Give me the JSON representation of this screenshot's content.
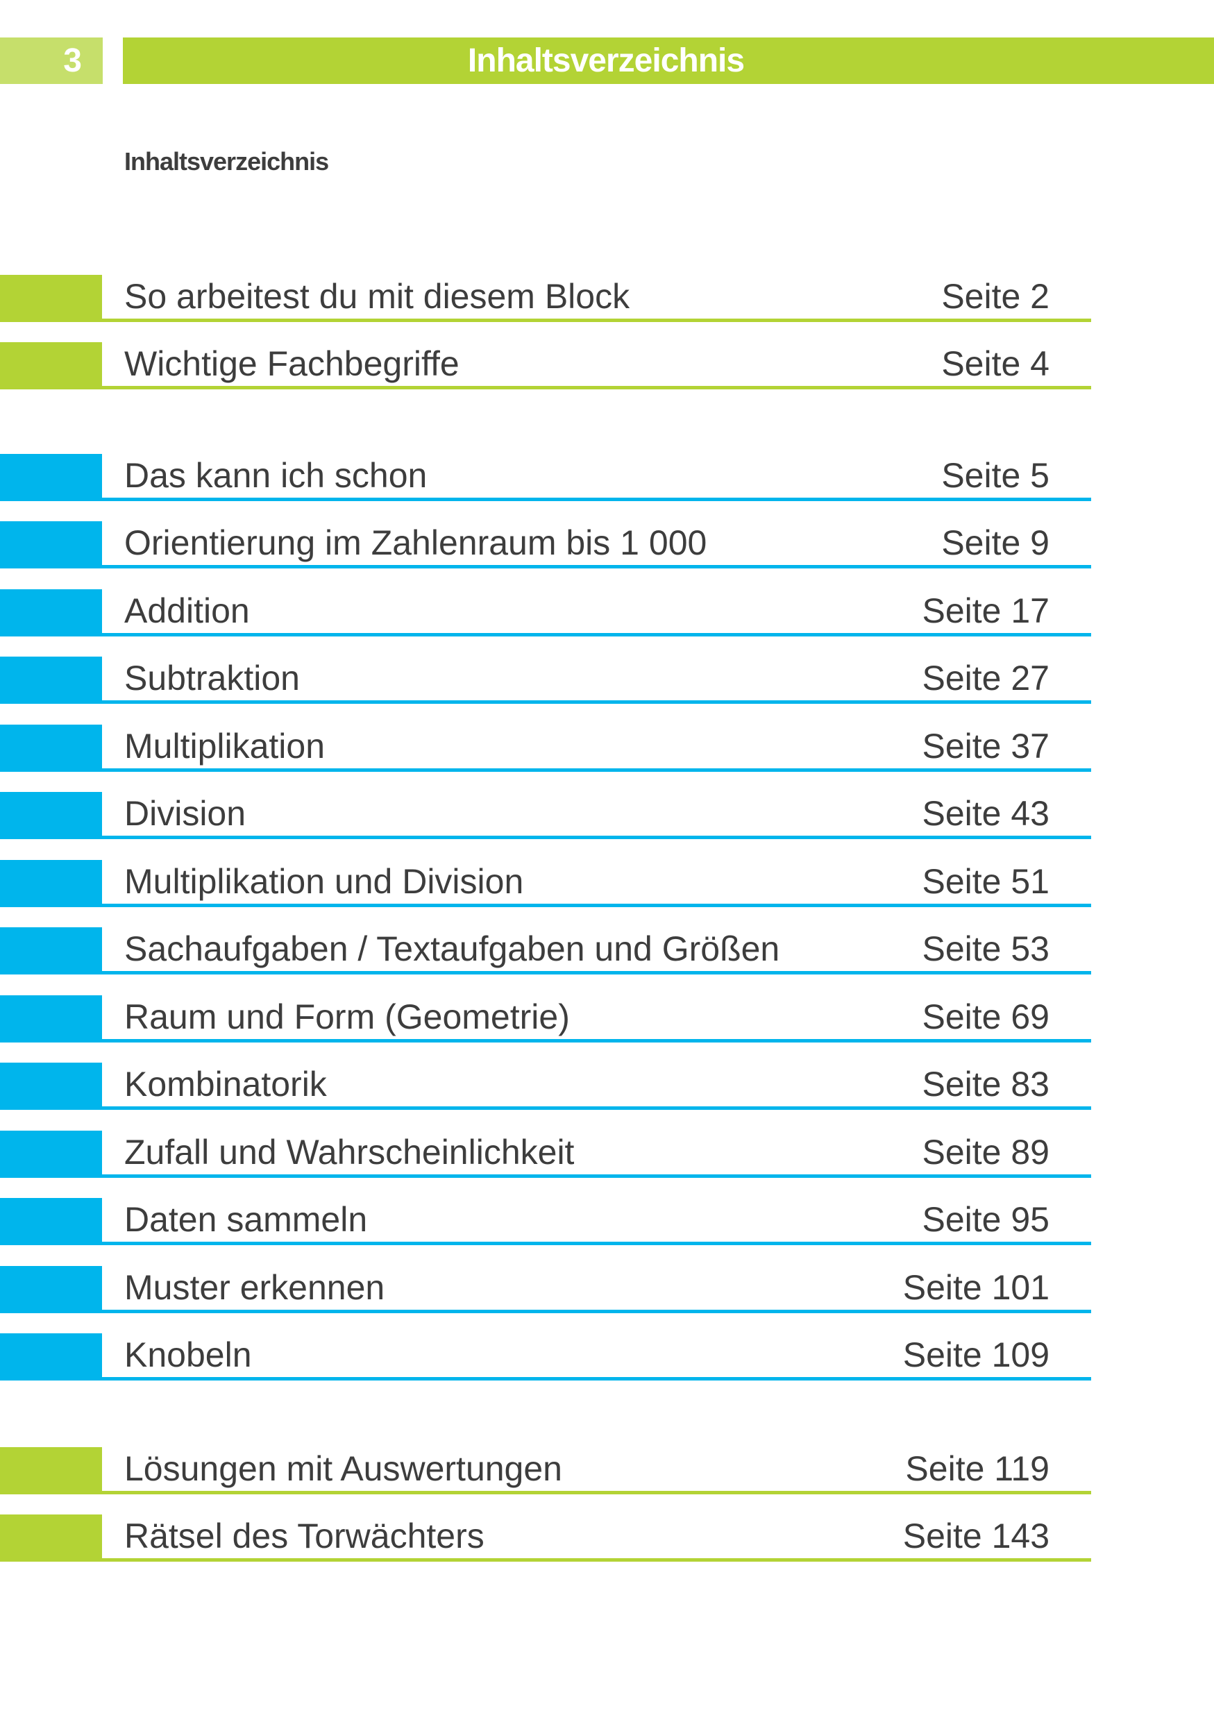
{
  "header": {
    "page_number": "3",
    "title": "Inhaltsverzeichnis"
  },
  "subheading": "Inhaltsverzeichnis",
  "colors": {
    "green": "#b3d335",
    "light_green": "#c6df6b",
    "blue": "#00b5ec",
    "text": "#3d3d3d"
  },
  "toc": [
    {
      "label": "So arbeitest du mit diesem Block",
      "page": "Seite 2",
      "color": "green"
    },
    {
      "label": "Wichtige Fachbegriffe",
      "page": "Seite 4",
      "color": "green"
    },
    {
      "label": "Das kann ich schon",
      "page": "Seite 5",
      "color": "blue"
    },
    {
      "label": "Orientierung im Zahlenraum bis 1 000",
      "page": "Seite 9",
      "color": "blue"
    },
    {
      "label": "Addition",
      "page": "Seite 17",
      "color": "blue"
    },
    {
      "label": "Subtraktion",
      "page": "Seite 27",
      "color": "blue"
    },
    {
      "label": "Multiplikation",
      "page": "Seite 37",
      "color": "blue"
    },
    {
      "label": "Division",
      "page": "Seite 43",
      "color": "blue"
    },
    {
      "label": "Multiplikation und Division",
      "page": "Seite 51",
      "color": "blue"
    },
    {
      "label": "Sachaufgaben / Textaufgaben und Größen",
      "page": "Seite 53",
      "color": "blue"
    },
    {
      "label": "Raum und Form (Geometrie)",
      "page": "Seite 69",
      "color": "blue"
    },
    {
      "label": "Kombinatorik",
      "page": "Seite 83",
      "color": "blue"
    },
    {
      "label": "Zufall und Wahrscheinlichkeit",
      "page": "Seite 89",
      "color": "blue"
    },
    {
      "label": "Daten sammeln",
      "page": "Seite 95",
      "color": "blue"
    },
    {
      "label": "Muster erkennen",
      "page": "Seite 101",
      "color": "blue"
    },
    {
      "label": "Knobeln",
      "page": "Seite 109",
      "color": "blue"
    },
    {
      "label": "Lösungen mit Auswertungen",
      "page": "Seite 119",
      "color": "green"
    },
    {
      "label": "Rätsel des Torwächters",
      "page": "Seite 143",
      "color": "green"
    }
  ]
}
